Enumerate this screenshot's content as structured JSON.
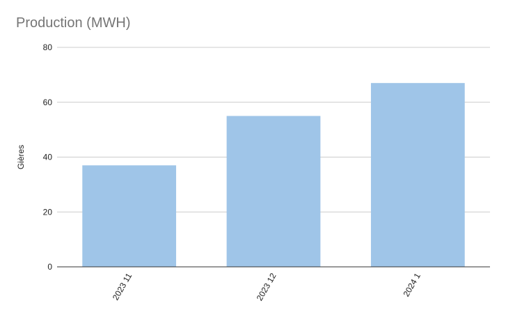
{
  "chart_data": {
    "type": "bar",
    "title": "Production (MWH)",
    "xlabel": "",
    "ylabel": "Gières",
    "categories": [
      "2023 11",
      "2023 12",
      "2024 1"
    ],
    "series": [
      {
        "values": [
          37,
          55,
          67
        ]
      }
    ],
    "ylim": [
      0,
      80
    ],
    "yticks": [
      0,
      20,
      40,
      60,
      80
    ],
    "grid": true,
    "legend": "none",
    "colors": {
      "bar": "#9fc5e8",
      "grid": "#cccccc",
      "axis": "#333333",
      "title": "#757575"
    }
  }
}
